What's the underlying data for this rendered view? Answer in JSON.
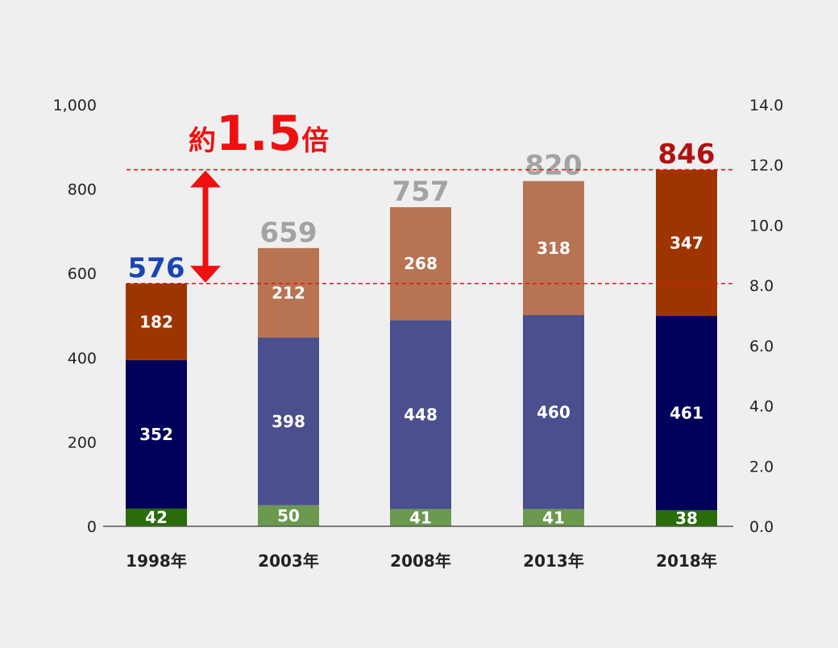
{
  "chart_data": {
    "type": "bar",
    "stacked": true,
    "categories": [
      "1998年",
      "2003年",
      "2008年",
      "2013年",
      "2018年"
    ],
    "series": [
      {
        "values": [
          42,
          50,
          41,
          41,
          38
        ]
      },
      {
        "values": [
          352,
          398,
          448,
          460,
          461
        ]
      },
      {
        "values": [
          182,
          212,
          268,
          318,
          347
        ]
      }
    ],
    "totals": [
      "576",
      "659",
      "757",
      "820",
      "846"
    ],
    "highlighted_categories": [
      "1998年",
      "2018年"
    ],
    "colors": {
      "series_highlight": [
        "#2a6b0a",
        "#01005a",
        "#9e3500"
      ],
      "series_normal": [
        "#6b9a4f",
        "#4b4f8e",
        "#b77352"
      ],
      "total_first": "#1a45b3",
      "total_last": "#b01212",
      "total_normal": "#a3a3a3",
      "annotation": "#ee1111",
      "background": "#efefef"
    },
    "ylim": [
      0,
      1000
    ],
    "yticks": [
      "0",
      "200",
      "400",
      "600",
      "800",
      "1,000"
    ],
    "y2lim": [
      0,
      14
    ],
    "y2ticks": [
      "0.0",
      "2.0",
      "4.0",
      "6.0",
      "8.0",
      "10.0",
      "12.0",
      "14.0"
    ],
    "grid": false,
    "annotation": {
      "prefix": "約",
      "value": "1.5",
      "suffix": "倍",
      "from_value": 576,
      "to_value": 846
    }
  }
}
